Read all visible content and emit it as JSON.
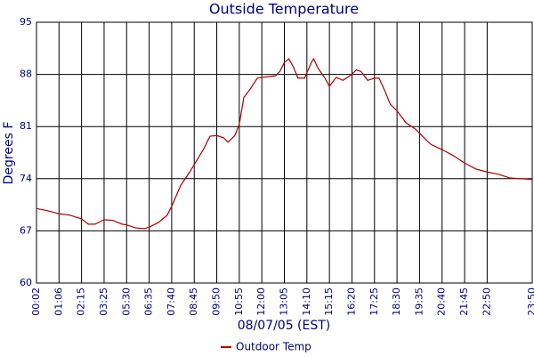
{
  "chart_data": {
    "type": "line",
    "title": "Outside Temperature",
    "x_label": "08/07/05 (EST)",
    "y_label": "Degrees F",
    "xlim": [
      0,
      22
    ],
    "xticks": [
      {
        "value": 0,
        "label": "00:02"
      },
      {
        "value": 1,
        "label": "01:06"
      },
      {
        "value": 2,
        "label": "02:15"
      },
      {
        "value": 3,
        "label": "03:25"
      },
      {
        "value": 4,
        "label": "05:30"
      },
      {
        "value": 5,
        "label": "06:35"
      },
      {
        "value": 6,
        "label": "07:40"
      },
      {
        "value": 7,
        "label": "08:45"
      },
      {
        "value": 8,
        "label": "09:50"
      },
      {
        "value": 9,
        "label": "10:55"
      },
      {
        "value": 10,
        "label": "12:00"
      },
      {
        "value": 11,
        "label": "13:05"
      },
      {
        "value": 12,
        "label": "14:10"
      },
      {
        "value": 13,
        "label": "15:15"
      },
      {
        "value": 14,
        "label": "16:20"
      },
      {
        "value": 15,
        "label": "17:25"
      },
      {
        "value": 16,
        "label": "18:30"
      },
      {
        "value": 17,
        "label": "19:35"
      },
      {
        "value": 18,
        "label": "20:40"
      },
      {
        "value": 19,
        "label": "21:45"
      },
      {
        "value": 20,
        "label": "22:50"
      },
      {
        "value": 22,
        "label": "23:50"
      }
    ],
    "ylim": [
      60,
      95
    ],
    "yticks": [
      60,
      67,
      74,
      81,
      88,
      95
    ],
    "grid": true,
    "x": [
      0,
      0.5,
      1,
      1.5,
      2,
      2.3,
      2.6,
      3,
      3.4,
      3.8,
      4,
      4.4,
      4.8,
      5,
      5.4,
      5.8,
      6,
      6.4,
      6.8,
      7,
      7.4,
      7.7,
      8,
      8.3,
      8.5,
      8.8,
      9,
      9.2,
      9.5,
      9.8,
      10,
      10.3,
      10.6,
      10.8,
      11,
      11.2,
      11.4,
      11.6,
      11.9,
      12,
      12.2,
      12.3,
      12.5,
      12.8,
      13,
      13.3,
      13.6,
      13.9,
      14.2,
      14.4,
      14.7,
      15,
      15.2,
      15.5,
      15.7,
      16,
      16.4,
      16.8,
      17,
      17.5,
      18,
      18.5,
      19,
      19.5,
      20,
      20.5,
      21,
      21.5,
      22
    ],
    "series": [
      {
        "name": "Outdoor Temp",
        "color": "#b00000",
        "values": [
          70.0,
          69.7,
          69.3,
          69.1,
          68.6,
          67.9,
          67.9,
          68.5,
          68.4,
          67.9,
          67.8,
          67.4,
          67.3,
          67.5,
          68.1,
          69.1,
          70.3,
          73.1,
          74.9,
          75.9,
          77.9,
          79.7,
          79.8,
          79.5,
          78.9,
          79.8,
          81.3,
          84.9,
          86.1,
          87.5,
          87.6,
          87.7,
          87.8,
          88.4,
          89.6,
          90.1,
          89.0,
          87.5,
          87.5,
          88.2,
          89.6,
          90.1,
          88.8,
          87.5,
          86.4,
          87.6,
          87.2,
          87.8,
          88.6,
          88.4,
          87.2,
          87.5,
          87.5,
          85.5,
          84.0,
          83.1,
          81.5,
          80.7,
          80.1,
          78.6,
          77.9,
          77.1,
          76.1,
          75.3,
          74.9,
          74.6,
          74.1,
          74.0,
          73.9
        ]
      }
    ]
  }
}
